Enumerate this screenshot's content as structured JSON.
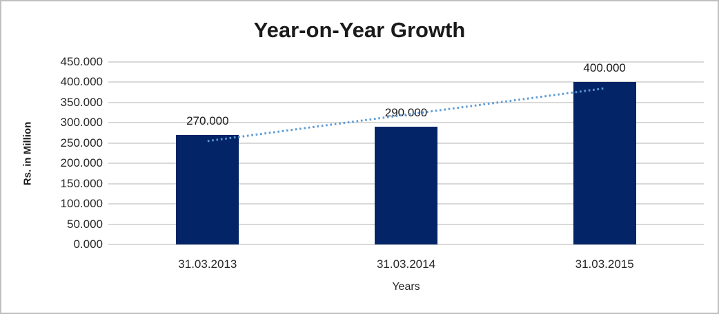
{
  "window": {
    "frame_border_color": "#bfbfbf",
    "background_color": "#ffffff"
  },
  "chart_data": {
    "type": "bar",
    "title": "Year-on-Year Growth",
    "xlabel": "Years",
    "ylabel": "Rs. in Million",
    "categories": [
      "31.03.2013",
      "31.03.2014",
      "31.03.2015"
    ],
    "values": [
      270,
      290,
      400
    ],
    "data_labels": [
      "270.000",
      "290.000",
      "400.000"
    ],
    "ylim": [
      0,
      450
    ],
    "ytick_step": 50,
    "ytick_labels": [
      "0.000",
      "50.000",
      "100.000",
      "150.000",
      "200.000",
      "250.000",
      "300.000",
      "350.000",
      "400.000",
      "450.000"
    ],
    "grid": true,
    "legend": "none",
    "bar_color": "#042468",
    "gridline_color": "#d9d9d9",
    "trendline": {
      "type": "linear",
      "style": "dotted",
      "color": "#5b9bd5",
      "start_value": 255,
      "end_value": 385,
      "span": "first-to-last-category"
    }
  }
}
